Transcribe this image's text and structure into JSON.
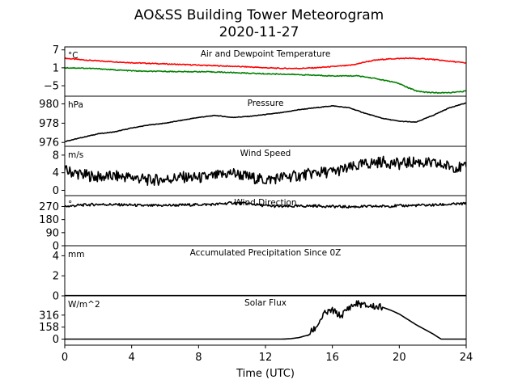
{
  "title": "AO&SS Building Tower Meteorogram",
  "subtitle": "2020-11-27",
  "chart_data": {
    "type": "line",
    "xlabel": "Time (UTC)",
    "xlim": [
      0,
      24
    ],
    "xticks": [
      0,
      4,
      8,
      12,
      16,
      20,
      24
    ],
    "panels": [
      {
        "title": "Air and Dewpoint Temperature",
        "unit": "°C",
        "ylim": [
          -8.5,
          8
        ],
        "yticks": [
          7,
          1,
          -5
        ],
        "series": [
          {
            "color": "#ff0000",
            "x": [
              0,
              1,
              2,
              3,
              4,
              5,
              6,
              7,
              8,
              9,
              10,
              11,
              12,
              13,
              14,
              15,
              16,
              17,
              17.5,
              18,
              18.5,
              19,
              19.5,
              20,
              20.5,
              21,
              21.5,
              22,
              22.5,
              23,
              23.5,
              24
            ],
            "y": [
              4.2,
              3.7,
              3.3,
              3.0,
              2.7,
              2.5,
              2.3,
              2.1,
              1.9,
              1.7,
              1.5,
              1.3,
              1.0,
              0.8,
              0.8,
              1.0,
              1.4,
              1.8,
              2.3,
              3.0,
              3.5,
              3.8,
              4.0,
              4.1,
              4.2,
              4.1,
              4.0,
              3.8,
              3.5,
              3.2,
              2.9,
              2.6
            ]
          },
          {
            "color": "#008000",
            "x": [
              0,
              1,
              2,
              3,
              4,
              5,
              6,
              7,
              8,
              9,
              10,
              11,
              12,
              13,
              14,
              15,
              16,
              17,
              17.5,
              18,
              18.5,
              19,
              19.5,
              20,
              20.5,
              21,
              21.5,
              22,
              22.5,
              23,
              23.5,
              24
            ],
            "y": [
              1.0,
              0.9,
              0.7,
              0.3,
              0.0,
              -0.2,
              -0.2,
              -0.3,
              -0.3,
              -0.4,
              -0.6,
              -0.8,
              -1.0,
              -1.1,
              -1.3,
              -1.5,
              -1.7,
              -1.7,
              -1.7,
              -2.1,
              -2.5,
              -3.1,
              -3.6,
              -4.3,
              -5.6,
              -6.7,
              -7.1,
              -7.3,
              -7.4,
              -7.3,
              -7.1,
              -6.8
            ]
          }
        ]
      },
      {
        "title": "Pressure",
        "unit": "hPa",
        "ylim": [
          975.6,
          980.8
        ],
        "yticks": [
          980,
          978,
          976
        ],
        "series": [
          {
            "color": "#000000",
            "x": [
              0,
              1,
              2,
              3,
              4,
              5,
              6,
              7,
              8,
              9,
              10,
              11,
              12,
              13,
              14,
              15,
              16,
              17,
              18,
              19,
              20,
              21,
              22,
              23,
              24
            ],
            "y": [
              976.1,
              976.5,
              976.9,
              977.1,
              977.5,
              977.8,
              978.0,
              978.3,
              978.6,
              978.8,
              978.6,
              978.7,
              978.9,
              979.1,
              979.4,
              979.6,
              979.8,
              979.6,
              979.0,
              978.5,
              978.2,
              978.1,
              978.8,
              979.6,
              980.1
            ]
          }
        ]
      },
      {
        "title": "Wind Speed",
        "unit": "m/s",
        "ylim": [
          -1.2,
          10
        ],
        "yticks": [
          8,
          4,
          0
        ],
        "series": [
          {
            "color": "#000000",
            "x": [
              0,
              1,
              2,
              3,
              4,
              5,
              6,
              7,
              8,
              9,
              10,
              11,
              12,
              13,
              14,
              15,
              16,
              17,
              18,
              19,
              20,
              21,
              22,
              23,
              24
            ],
            "y": [
              4.5,
              3.6,
              3.0,
              3.2,
              3.0,
              2.3,
              2.5,
              3.0,
              2.8,
              3.2,
              4.0,
              3.0,
              2.3,
              3.0,
              3.3,
              4.0,
              4.2,
              5.0,
              6.0,
              6.5,
              6.0,
              6.5,
              6.0,
              5.5,
              5.0
            ]
          }
        ]
      },
      {
        "title": "Wind Direction",
        "unit": "°",
        "ylim": [
          0,
          345
        ],
        "yticks": [
          270,
          180,
          90,
          0
        ],
        "series": [
          {
            "color": "#000000",
            "x": [
              0,
              1,
              2,
              3,
              4,
              5,
              6,
              7,
              8,
              9,
              10,
              11,
              12,
              13,
              14,
              15,
              16,
              17,
              18,
              19,
              20,
              21,
              22,
              23,
              24
            ],
            "y": [
              270,
              280,
              285,
              283,
              280,
              275,
              278,
              280,
              283,
              285,
              295,
              290,
              275,
              270,
              272,
              275,
              270,
              268,
              270,
              272,
              275,
              278,
              280,
              285,
              290
            ]
          }
        ]
      },
      {
        "title": "Accumulated Precipitation Since 0Z",
        "unit": "mm",
        "ylim": [
          0,
          5
        ],
        "yticks": [
          4,
          2,
          0
        ],
        "series": [
          {
            "color": "#000000",
            "x": [
              0,
              24
            ],
            "y": [
              0,
              0
            ]
          }
        ]
      },
      {
        "title": "Solar Flux",
        "unit": "W/m^2",
        "ylim": [
          -80,
          570
        ],
        "yticks": [
          316,
          158,
          0
        ],
        "series": [
          {
            "color": "#000000",
            "x": [
              0,
              4,
              8,
              12,
              13,
              13.5,
              14,
              14.5,
              15,
              15.5,
              16,
              16.5,
              17,
              17.5,
              18,
              18.5,
              19,
              19.5,
              20,
              20.5,
              21,
              21.5,
              22,
              22.5,
              23,
              24
            ],
            "y": [
              0,
              0,
              0,
              0,
              0,
              5,
              20,
              50,
              150,
              330,
              380,
              300,
              420,
              470,
              440,
              430,
              420,
              380,
              330,
              260,
              190,
              130,
              70,
              0,
              0,
              0
            ]
          }
        ]
      }
    ]
  }
}
